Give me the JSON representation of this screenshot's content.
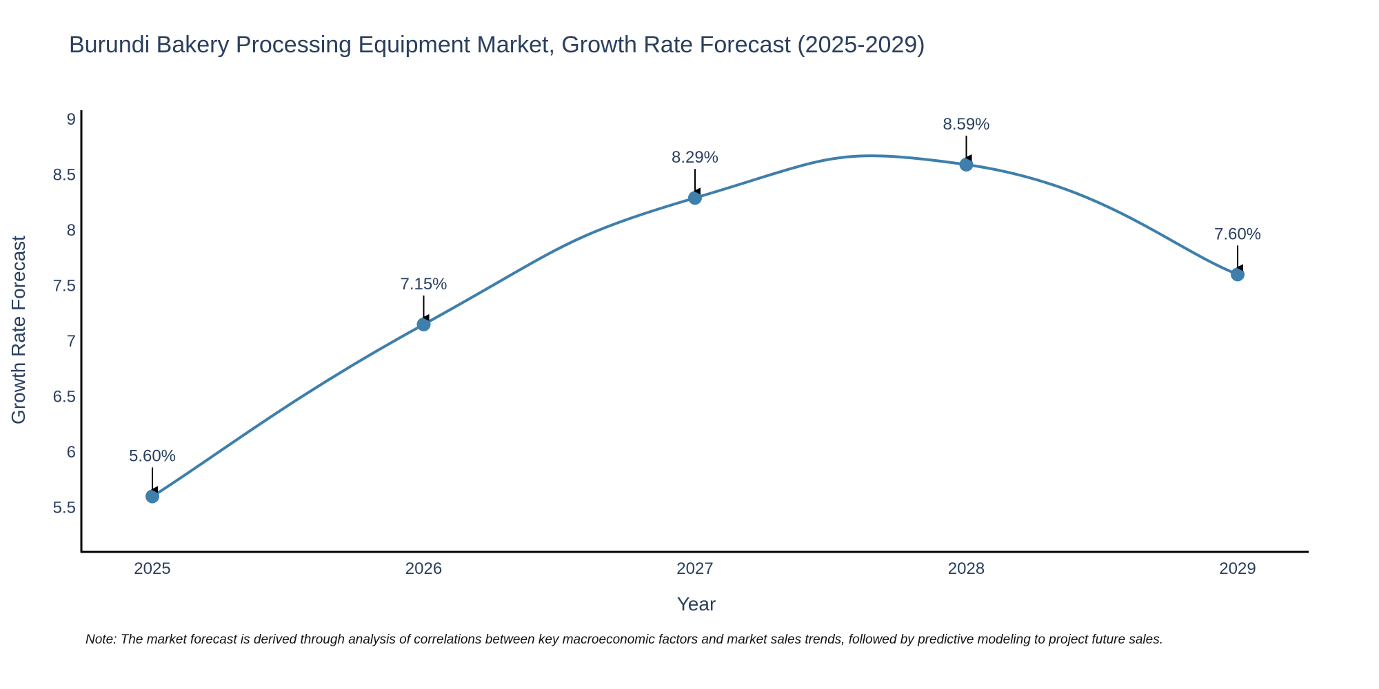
{
  "chart_data": {
    "type": "line",
    "title": "Burundi Bakery Processing Equipment Market, Growth Rate Forecast (2025-2029)",
    "xlabel": "Year",
    "ylabel": "Growth Rate Forecast",
    "categories": [
      "2025",
      "2026",
      "2027",
      "2028",
      "2029"
    ],
    "values": [
      5.6,
      7.15,
      8.29,
      8.59,
      7.6
    ],
    "data_labels": [
      "5.60%",
      "7.15%",
      "8.29%",
      "8.59%",
      "7.60%"
    ],
    "y_ticks": [
      5.5,
      6,
      6.5,
      7,
      7.5,
      8,
      8.5,
      9
    ],
    "y_tick_labels": [
      "5.5",
      "6",
      "6.5",
      "7",
      "7.5",
      "8",
      "8.5",
      "9"
    ],
    "ylim": [
      5.1,
      9.08
    ],
    "grid": false,
    "line_shape": "spline",
    "colors": {
      "line": "#3e7fab",
      "marker": "#3e7fab",
      "arrow": "#000000",
      "axis": "#000000"
    }
  },
  "note": "Note: The market forecast is derived through analysis of correlations between key macroeconomic factors and market sales trends, followed by predictive modeling to project future sales."
}
